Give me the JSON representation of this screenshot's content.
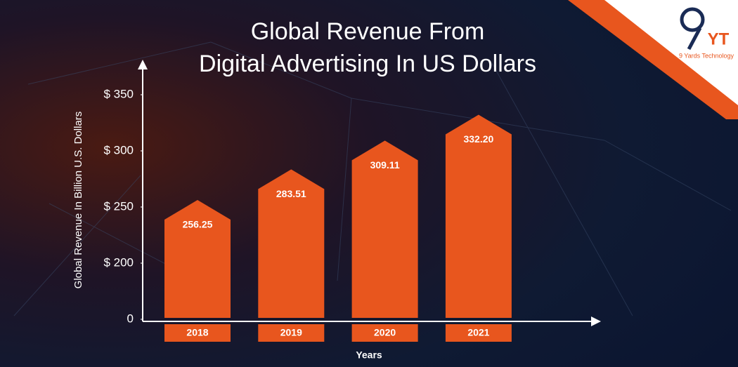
{
  "chart_data": {
    "type": "bar",
    "title": [
      "Global Revenue From",
      "Digital Advertising In US Dollars"
    ],
    "y_label": "Global Revenue In Billion U.S. Dollars",
    "x_label": "Years",
    "categories": [
      "2018",
      "2019",
      "2020",
      "2021"
    ],
    "values": [
      256.25,
      283.51,
      309.11,
      332.2
    ],
    "value_labels": [
      "256.25",
      "283.51",
      "309.11",
      "332.20"
    ],
    "color": "#e8561e",
    "ylim": [
      0,
      375
    ],
    "axis_break": [
      0,
      150
    ],
    "yticks": [
      0,
      {
        "value": 200,
        "label": "$ 200"
      },
      {
        "value": 250,
        "label": "$ 250"
      },
      {
        "value": 300,
        "label": "$ 300"
      },
      {
        "value": 350,
        "label": "$ 350"
      }
    ],
    "grid": false
  },
  "logo": {
    "mark": "YT",
    "name": "9 Yards Technology"
  }
}
